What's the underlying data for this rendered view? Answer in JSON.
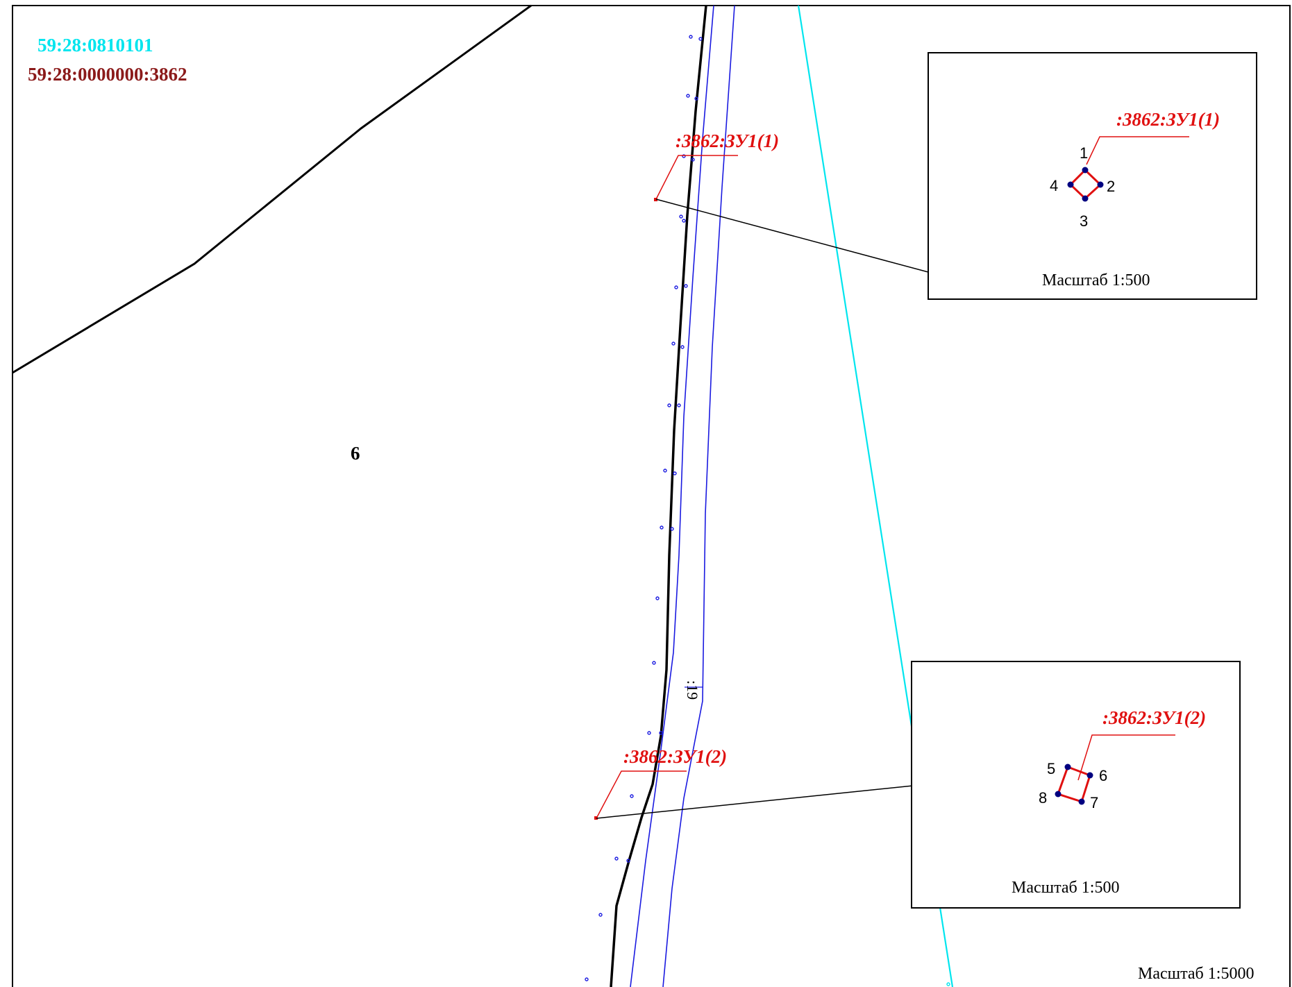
{
  "labels": {
    "quarter_number": "59:28:0810101",
    "parcel_number": "59:28:0000000:3862",
    "area_number": "6",
    "road_label": ":19",
    "zu1": ":3862:ЗУ1(1)",
    "zu2": ":3862:ЗУ1(2)"
  },
  "insets": [
    {
      "label": ":3862:ЗУ1(1)",
      "scale": "Масштаб 1:500",
      "points": [
        "1",
        "2",
        "3",
        "4"
      ]
    },
    {
      "label": ":3862:ЗУ1(2)",
      "scale": "Масштаб 1:500",
      "points": [
        "5",
        "6",
        "7",
        "8"
      ]
    }
  ],
  "main_scale": "Масштаб 1:5000",
  "colors": {
    "quarter": "#00e5ee",
    "parcel": "#8b1a1a",
    "zu": "#e01010",
    "road": "#1a1ae0",
    "point": "#000080",
    "boundary": "#000000"
  }
}
